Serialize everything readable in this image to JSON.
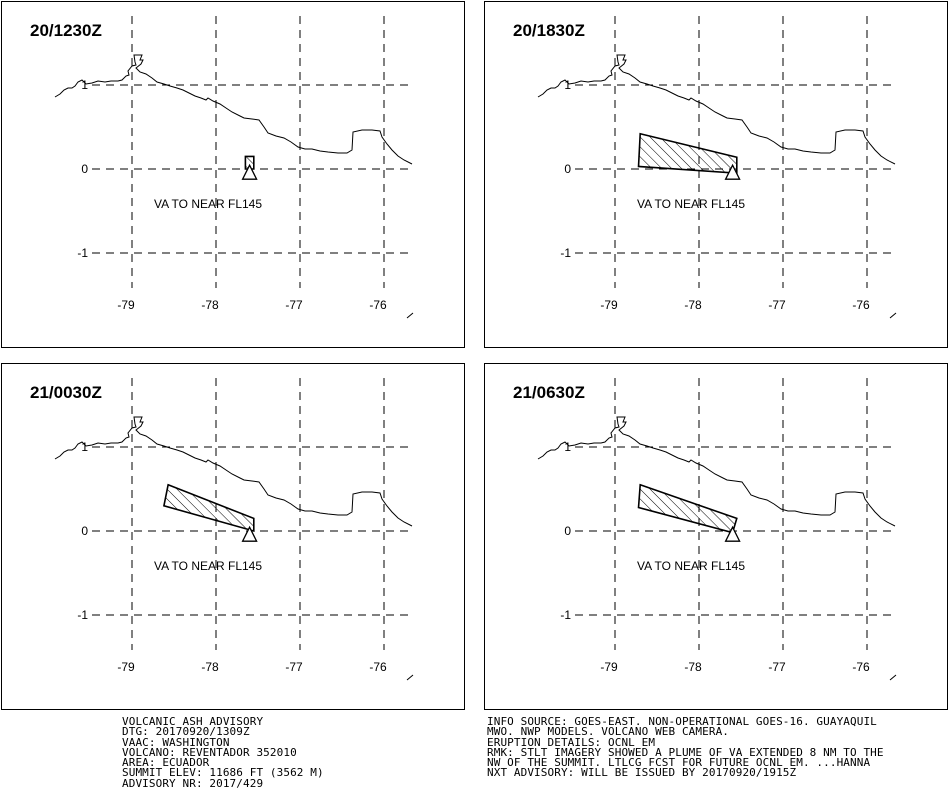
{
  "advisory_map": {
    "panels": [
      {
        "time_label": "20/1230Z",
        "forecast_text": "VA TO NEAR FL145"
      },
      {
        "time_label": "20/1830Z",
        "forecast_text": "VA TO NEAR FL145"
      },
      {
        "time_label": "21/0030Z",
        "forecast_text": "VA TO NEAR FL145"
      },
      {
        "time_label": "21/0630Z",
        "forecast_text": "VA TO NEAR FL145"
      }
    ],
    "lat_labels": [
      "1",
      "0",
      "-1"
    ],
    "lon_labels": [
      "-79",
      "-78",
      "-77",
      "-76"
    ],
    "ash_polygons_lonlat": [
      [
        [
          -77.65,
          0.15
        ],
        [
          -77.55,
          0.15
        ],
        [
          -77.55,
          0.0
        ],
        [
          -77.65,
          0.0
        ]
      ],
      [
        [
          -78.7,
          0.42
        ],
        [
          -77.55,
          0.14
        ],
        [
          -77.55,
          -0.05
        ],
        [
          -78.72,
          0.03
        ]
      ],
      [
        [
          -78.57,
          0.55
        ],
        [
          -77.55,
          0.15
        ],
        [
          -77.55,
          0.0
        ],
        [
          -78.62,
          0.3
        ]
      ],
      [
        [
          -78.7,
          0.55
        ],
        [
          -77.55,
          0.15
        ],
        [
          -77.6,
          -0.02
        ],
        [
          -78.72,
          0.28
        ]
      ]
    ],
    "volcano": {
      "lon": -77.6,
      "lat": -0.05
    }
  },
  "footer_left": [
    "VOLCANIC ASH ADVISORY",
    "DTG: 20170920/1309Z",
    "VAAC: WASHINGTON",
    "VOLCANO: REVENTADOR 352010",
    "AREA: ECUADOR",
    "SUMMIT ELEV: 11686 FT (3562 M)",
    "ADVISORY NR: 2017/429"
  ],
  "footer_right": [
    "INFO SOURCE: GOES-EAST. NON-OPERATIONAL GOES-16. GUAYAQUIL",
    "MWO. NWP MODELS. VOLCANO WEB CAMERA.",
    "ERUPTION DETAILS: OCNL EM",
    "RMK: STLT IMAGERY SHOWED A PLUME OF VA EXTENDED 8 NM TO THE",
    "NW OF THE SUMMIT. LTLCG FCST FOR FUTURE OCNL EM. ...HANNA",
    "NXT ADVISORY: WILL BE ISSUED BY 20170920/1915Z"
  ]
}
